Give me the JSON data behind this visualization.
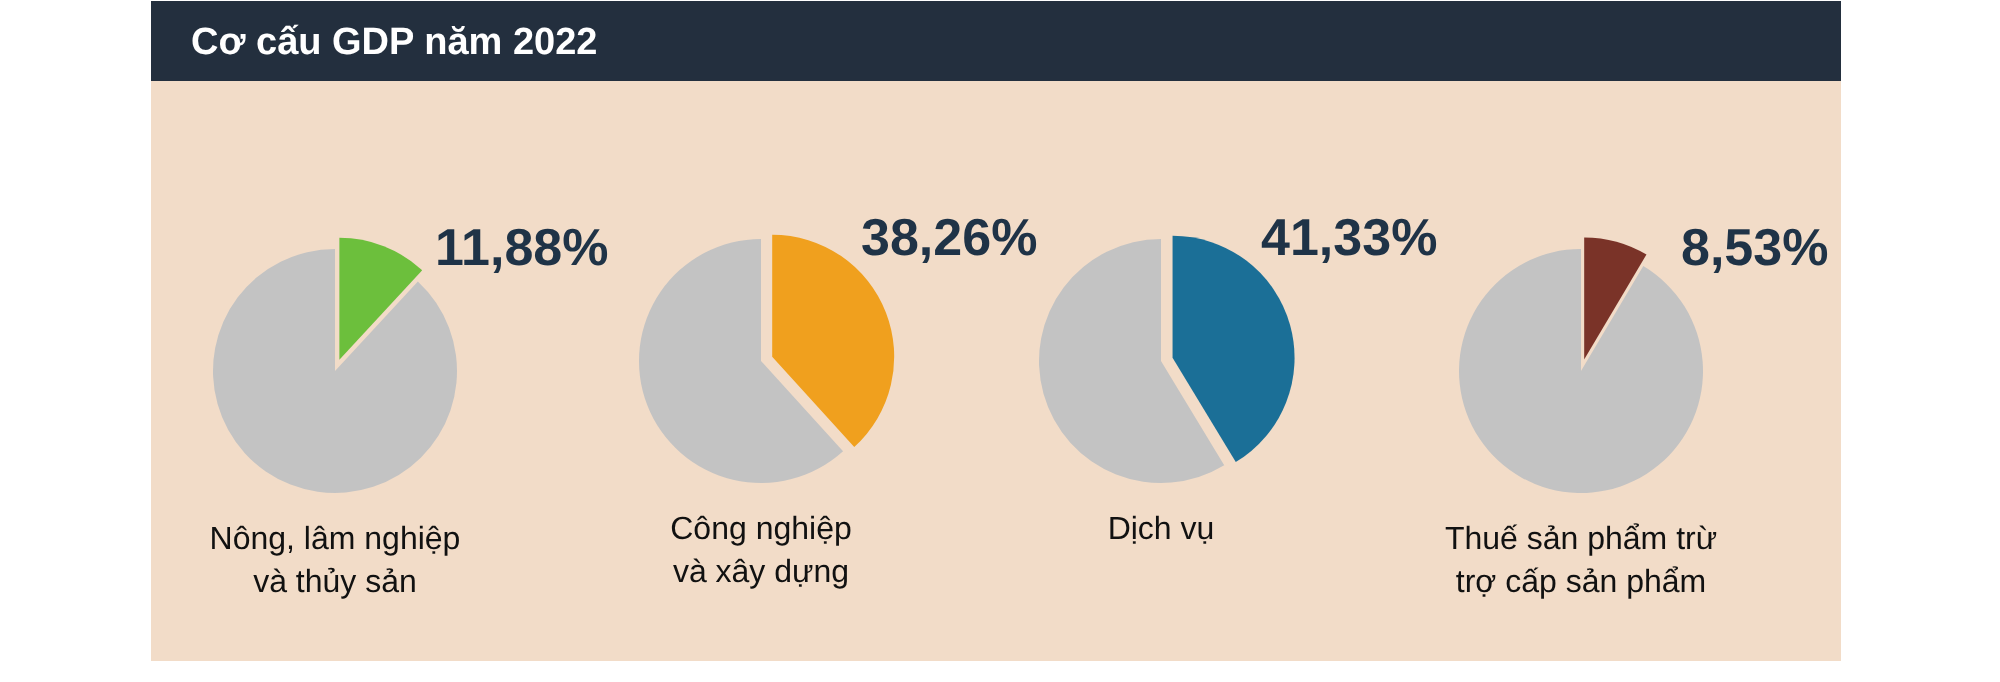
{
  "chart_data": [
    {
      "type": "pie",
      "title": "Cơ cấu GDP năm 2022",
      "xlabel": "Nông, lâm nghiệp\nvà thủy sản",
      "categories": [
        null,
        null
      ],
      "values": [
        11.88,
        88.12
      ],
      "colors": [
        "#6cbf3c",
        "#c3c3c3"
      ],
      "value_labels": [
        "11,88%",
        null
      ]
    },
    {
      "type": "pie",
      "xlabel": "Công nghiệp\nvà xây dựng",
      "categories": [
        null,
        null
      ],
      "values": [
        38.26,
        61.74
      ],
      "colors": [
        "#f0a01e",
        "#c3c3c3"
      ],
      "value_labels": [
        "38,26%",
        null
      ]
    },
    {
      "type": "pie",
      "xlabel": "Dịch vụ",
      "categories": [
        null,
        null
      ],
      "values": [
        41.33,
        58.67
      ],
      "colors": [
        "#1b6f97",
        "#c3c3c3"
      ],
      "value_labels": [
        "41,33%",
        null
      ]
    },
    {
      "type": "pie",
      "xlabel": "Thuế sản phẩm trừ\ntrợ cấp sản phẩm",
      "categories": [
        null,
        null
      ],
      "values": [
        8.53,
        91.47
      ],
      "colors": [
        "#7a3328",
        "#c3c3c3"
      ],
      "value_labels": [
        "8,53%",
        null
      ]
    }
  ]
}
